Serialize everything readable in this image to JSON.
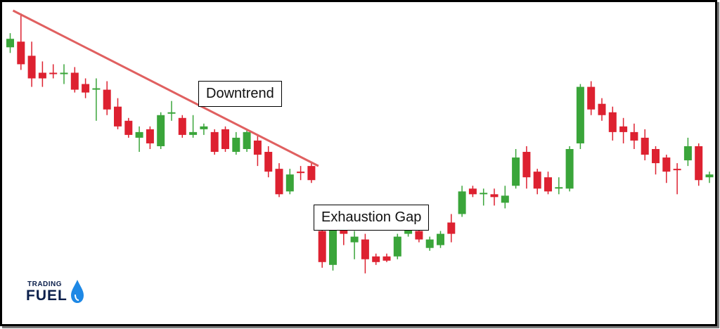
{
  "chart_data": {
    "type": "candlestick",
    "title": "",
    "xlabel": "",
    "ylabel": "",
    "axes_visible": false,
    "grid": false,
    "ylim": [
      0,
      100
    ],
    "colors": {
      "up": "#3aa53a",
      "down": "#dd2130",
      "trendline": "#e06060"
    },
    "candles": [
      {
        "dir": "up",
        "open": 86,
        "close": 89,
        "high": 91,
        "low": 84
      },
      {
        "dir": "down",
        "open": 88,
        "close": 80,
        "high": 98,
        "low": 78
      },
      {
        "dir": "down",
        "open": 83,
        "close": 75,
        "high": 88,
        "low": 72
      },
      {
        "dir": "down",
        "open": 77,
        "close": 75,
        "high": 81,
        "low": 72
      },
      {
        "dir": "down",
        "open": 77,
        "close": 76.5,
        "high": 80,
        "low": 75
      },
      {
        "dir": "up",
        "open": 76.5,
        "close": 77,
        "high": 80,
        "low": 73
      },
      {
        "dir": "down",
        "open": 77,
        "close": 71,
        "high": 79,
        "low": 70
      },
      {
        "dir": "down",
        "open": 73,
        "close": 70,
        "high": 75,
        "low": 68
      },
      {
        "dir": "up",
        "open": 71,
        "close": 71.5,
        "high": 75,
        "low": 60
      },
      {
        "dir": "down",
        "open": 71,
        "close": 64,
        "high": 74,
        "low": 62
      },
      {
        "dir": "down",
        "open": 65,
        "close": 58,
        "high": 68,
        "low": 57
      },
      {
        "dir": "down",
        "open": 60,
        "close": 55,
        "high": 61,
        "low": 54
      },
      {
        "dir": "up",
        "open": 54,
        "close": 56,
        "high": 58,
        "low": 49
      },
      {
        "dir": "down",
        "open": 57,
        "close": 52,
        "high": 58,
        "low": 50
      },
      {
        "dir": "up",
        "open": 51,
        "close": 62,
        "high": 63,
        "low": 50
      },
      {
        "dir": "up",
        "open": 62.5,
        "close": 63,
        "high": 67,
        "low": 60
      },
      {
        "dir": "down",
        "open": 61,
        "close": 55,
        "high": 62,
        "low": 54
      },
      {
        "dir": "up",
        "open": 55,
        "close": 56,
        "high": 62,
        "low": 54
      },
      {
        "dir": "up",
        "open": 57,
        "close": 58,
        "high": 59,
        "low": 55
      },
      {
        "dir": "down",
        "open": 56,
        "close": 49,
        "high": 57,
        "low": 48
      },
      {
        "dir": "down",
        "open": 57,
        "close": 50,
        "high": 58,
        "low": 49
      },
      {
        "dir": "up",
        "open": 49,
        "close": 54,
        "high": 56,
        "low": 48
      },
      {
        "dir": "up",
        "open": 50,
        "close": 56,
        "high": 57,
        "low": 49
      },
      {
        "dir": "down",
        "open": 53,
        "close": 48,
        "high": 55,
        "low": 44
      },
      {
        "dir": "down",
        "open": 49,
        "close": 42,
        "high": 51,
        "low": 40
      },
      {
        "dir": "down",
        "open": 43,
        "close": 34,
        "high": 45,
        "low": 33
      },
      {
        "dir": "up",
        "open": 35,
        "close": 41,
        "high": 43,
        "low": 34
      },
      {
        "dir": "down",
        "open": 42,
        "close": 41.5,
        "high": 44,
        "low": 39
      },
      {
        "dir": "down",
        "open": 44,
        "close": 39,
        "high": 45,
        "low": 38
      },
      {
        "dir": "down",
        "open": 21,
        "close": 10,
        "high": 24,
        "low": 8
      },
      {
        "dir": "up",
        "open": 9,
        "close": 24,
        "high": 26,
        "low": 7
      },
      {
        "dir": "down",
        "open": 24,
        "close": 20,
        "high": 26,
        "low": 16
      },
      {
        "dir": "up",
        "open": 17,
        "close": 19,
        "high": 21,
        "low": 11
      },
      {
        "dir": "down",
        "open": 18,
        "close": 11,
        "high": 20,
        "low": 6
      },
      {
        "dir": "down",
        "open": 12,
        "close": 10,
        "high": 13,
        "low": 9
      },
      {
        "dir": "down",
        "open": 12,
        "close": 10.5,
        "high": 13,
        "low": 10
      },
      {
        "dir": "up",
        "open": 12,
        "close": 19,
        "high": 20,
        "low": 11
      },
      {
        "dir": "up",
        "open": 20,
        "close": 24,
        "high": 26,
        "low": 19
      },
      {
        "dir": "down",
        "open": 21,
        "close": 18,
        "high": 24,
        "low": 17
      },
      {
        "dir": "up",
        "open": 15,
        "close": 18,
        "high": 19,
        "low": 14
      },
      {
        "dir": "up",
        "open": 16,
        "close": 20,
        "high": 21,
        "low": 15
      },
      {
        "dir": "down",
        "open": 24,
        "close": 20,
        "high": 27,
        "low": 17
      },
      {
        "dir": "up",
        "open": 27,
        "close": 35,
        "high": 37,
        "low": 26
      },
      {
        "dir": "down",
        "open": 36,
        "close": 34,
        "high": 37,
        "low": 33
      },
      {
        "dir": "up",
        "open": 34,
        "close": 34.5,
        "high": 36,
        "low": 30
      },
      {
        "dir": "down",
        "open": 34,
        "close": 33,
        "high": 36,
        "low": 30
      },
      {
        "dir": "up",
        "open": 31,
        "close": 33.5,
        "high": 37,
        "low": 29
      },
      {
        "dir": "up",
        "open": 37,
        "close": 47,
        "high": 50,
        "low": 36
      },
      {
        "dir": "down",
        "open": 49,
        "close": 40,
        "high": 51,
        "low": 36
      },
      {
        "dir": "down",
        "open": 42,
        "close": 36,
        "high": 43,
        "low": 34
      },
      {
        "dir": "down",
        "open": 40,
        "close": 35,
        "high": 42,
        "low": 34
      },
      {
        "dir": "up",
        "open": 36,
        "close": 36.5,
        "high": 40,
        "low": 34
      },
      {
        "dir": "up",
        "open": 36,
        "close": 50,
        "high": 51,
        "low": 35
      },
      {
        "dir": "up",
        "open": 52,
        "close": 72,
        "high": 73,
        "low": 50
      },
      {
        "dir": "down",
        "open": 72,
        "close": 64,
        "high": 74,
        "low": 62
      },
      {
        "dir": "down",
        "open": 66,
        "close": 62,
        "high": 68,
        "low": 60
      },
      {
        "dir": "down",
        "open": 63,
        "close": 56,
        "high": 65,
        "low": 53
      },
      {
        "dir": "down",
        "open": 58,
        "close": 56,
        "high": 61,
        "low": 52
      },
      {
        "dir": "down",
        "open": 56,
        "close": 53,
        "high": 59,
        "low": 50
      },
      {
        "dir": "down",
        "open": 54,
        "close": 48,
        "high": 57,
        "low": 46
      },
      {
        "dir": "down",
        "open": 50,
        "close": 45,
        "high": 51,
        "low": 41
      },
      {
        "dir": "down",
        "open": 47,
        "close": 42,
        "high": 48,
        "low": 38
      },
      {
        "dir": "down",
        "open": 43,
        "close": 42.5,
        "high": 45,
        "low": 34
      },
      {
        "dir": "up",
        "open": 46,
        "close": 51,
        "high": 54,
        "low": 44
      },
      {
        "dir": "down",
        "open": 51,
        "close": 39,
        "high": 52,
        "low": 37
      },
      {
        "dir": "up",
        "open": 40,
        "close": 41,
        "high": 42,
        "low": 38
      }
    ],
    "annotations": [
      {
        "text": "Downtrend"
      },
      {
        "text": "Exhaustion Gap"
      }
    ],
    "trendline": {
      "from_index": 0,
      "from_value": 99,
      "to_index": 28,
      "to_value": 44
    }
  },
  "logo": {
    "line1": "TRADING",
    "line2": "FUEL"
  }
}
